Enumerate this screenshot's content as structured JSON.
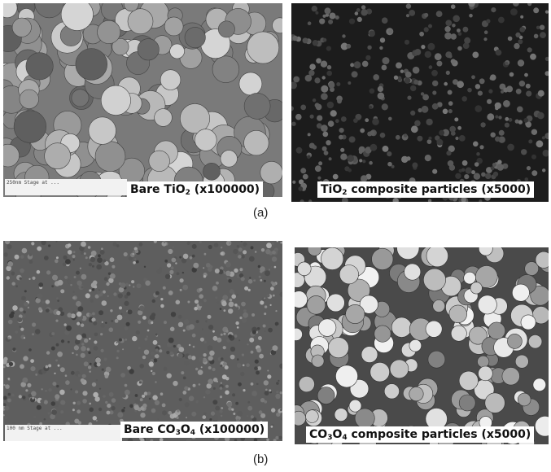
{
  "figure": {
    "panels": [
      {
        "id": "a-left",
        "caption_prefix": "Bare TiO",
        "caption_sub": "2",
        "caption_suffix": " (x100000)"
      },
      {
        "id": "a-right",
        "caption_prefix": "TiO",
        "caption_sub": "2",
        "caption_suffix": " composite particles (x5000)"
      },
      {
        "id": "b-left",
        "caption_prefix": "Bare CO",
        "caption_sub": "3",
        "caption_mid": "O",
        "caption_sub2": "4",
        "caption_suffix": " (x100000)"
      },
      {
        "id": "b-right",
        "caption_prefix": "CO",
        "caption_sub": "3",
        "caption_mid": "O",
        "caption_sub2": "4",
        "caption_suffix": " composite particles (x5000)"
      }
    ],
    "labels": {
      "a": "(a)",
      "b": "(b)"
    },
    "databar_a": "250nm  Stage at ...",
    "databar_b": "100 nm  Stage at ..."
  },
  "colors": {
    "bg": "#ffffff",
    "dark_panel": "#1a1a1a",
    "mid_panel": "#6b6b6b"
  }
}
